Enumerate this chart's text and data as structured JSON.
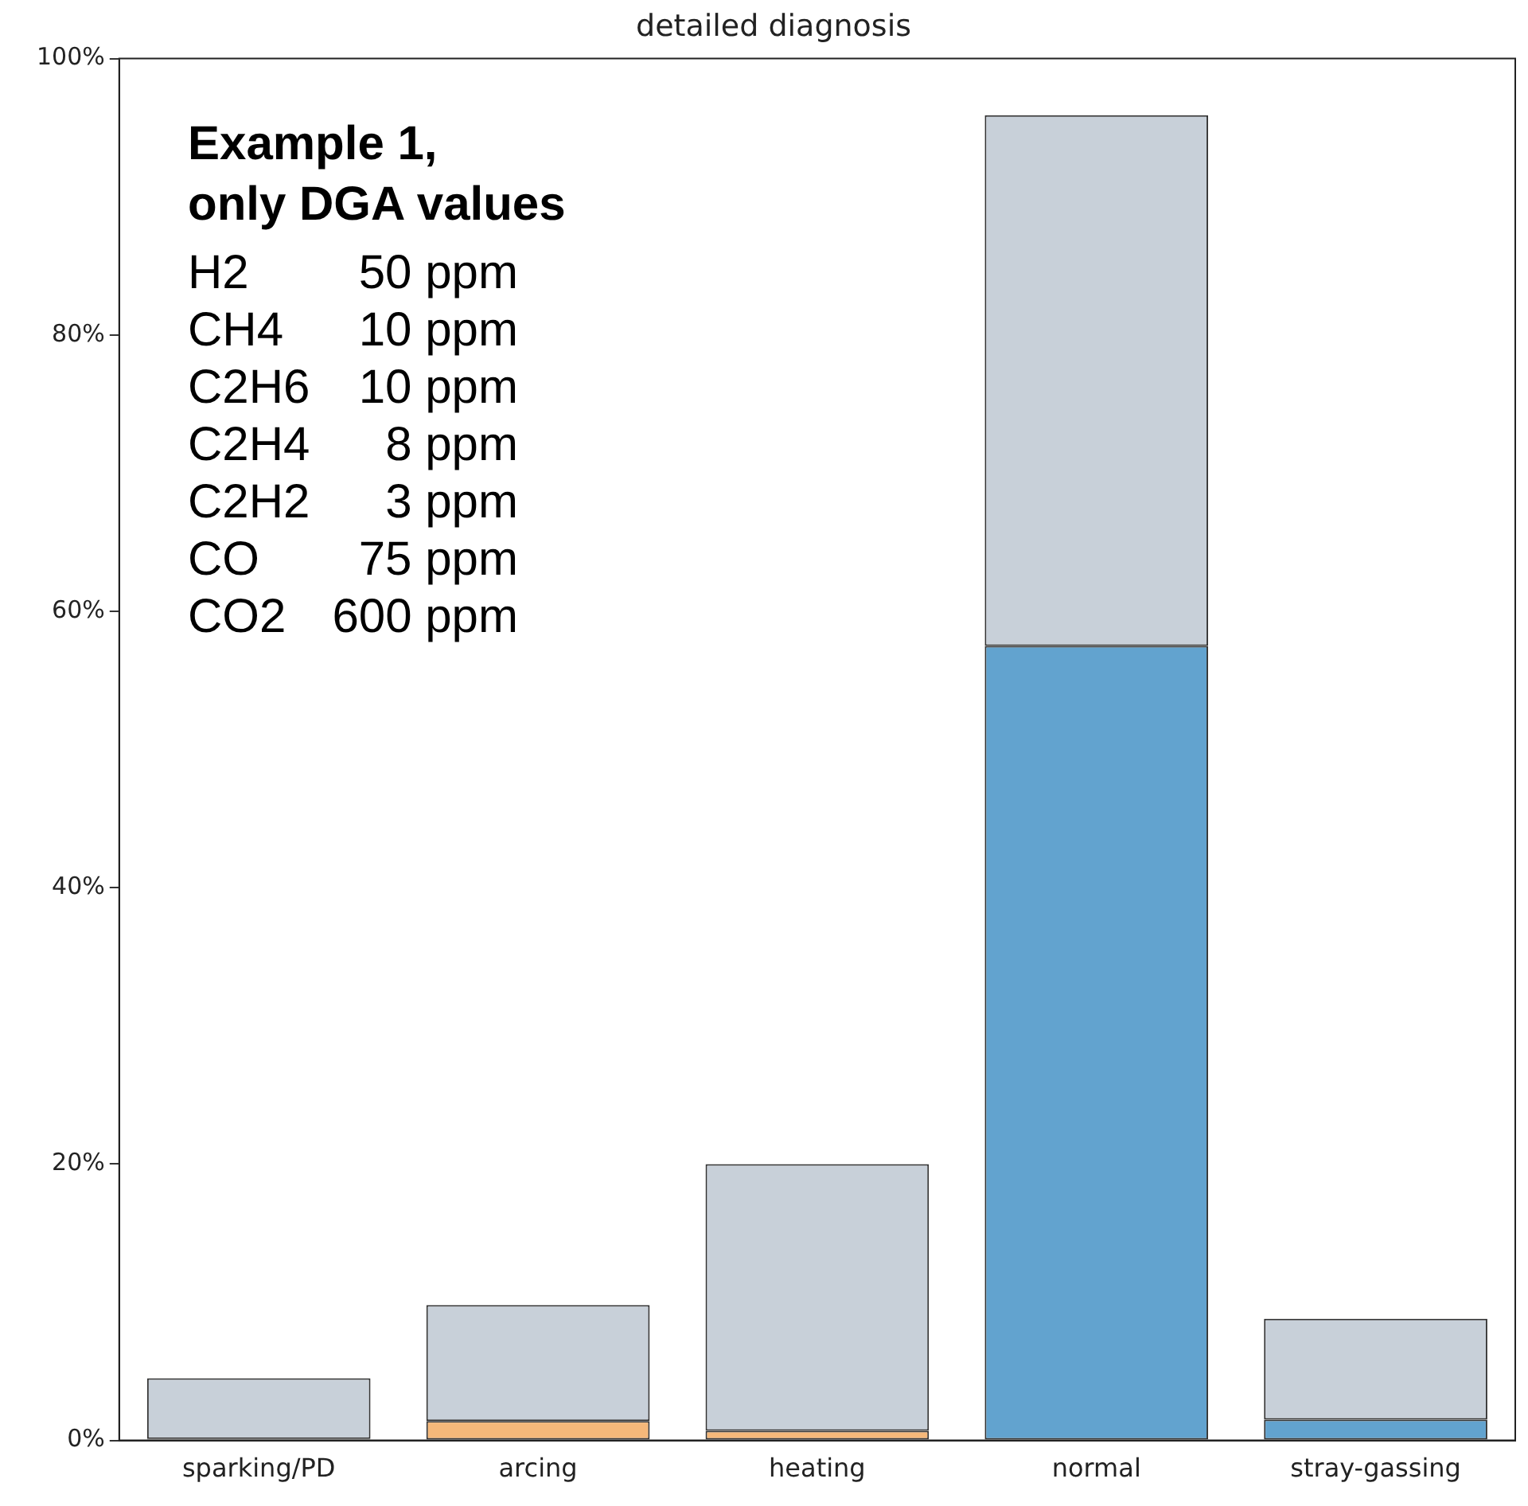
{
  "chart_data": {
    "type": "bar",
    "title": "detailed diagnosis",
    "stacked": true,
    "categories": [
      "sparking/PD",
      "arcing",
      "heating",
      "normal",
      "stray-gassing"
    ],
    "series": [
      {
        "colors": [
          "#62a3cf",
          "#f5b87a",
          "#f5b87a",
          "#62a3cf",
          "#62a3cf"
        ],
        "values": [
          0.1,
          1.4,
          0.7,
          57.5,
          1.5
        ]
      },
      {
        "color": "#c8d0d9",
        "values": [
          4.4,
          8.4,
          19.3,
          38.4,
          7.3
        ]
      }
    ],
    "ylim": [
      0,
      100
    ],
    "yticks": [
      {
        "value": 0,
        "label": "0%"
      },
      {
        "value": 20,
        "label": "20%"
      },
      {
        "value": 40,
        "label": "40%"
      },
      {
        "value": 60,
        "label": "60%"
      },
      {
        "value": 80,
        "label": "80%"
      },
      {
        "value": 100,
        "label": "100%"
      }
    ],
    "grid": false,
    "legend": false,
    "annotations": [
      "Example 1,\nonly DGA values",
      "H2 50 ppm",
      "CH4 10 ppm",
      "C2H6 10 ppm",
      "C2H4 8 ppm",
      "C2H2 3 ppm",
      "CO 75 ppm",
      "CO2 600 ppm"
    ]
  }
}
